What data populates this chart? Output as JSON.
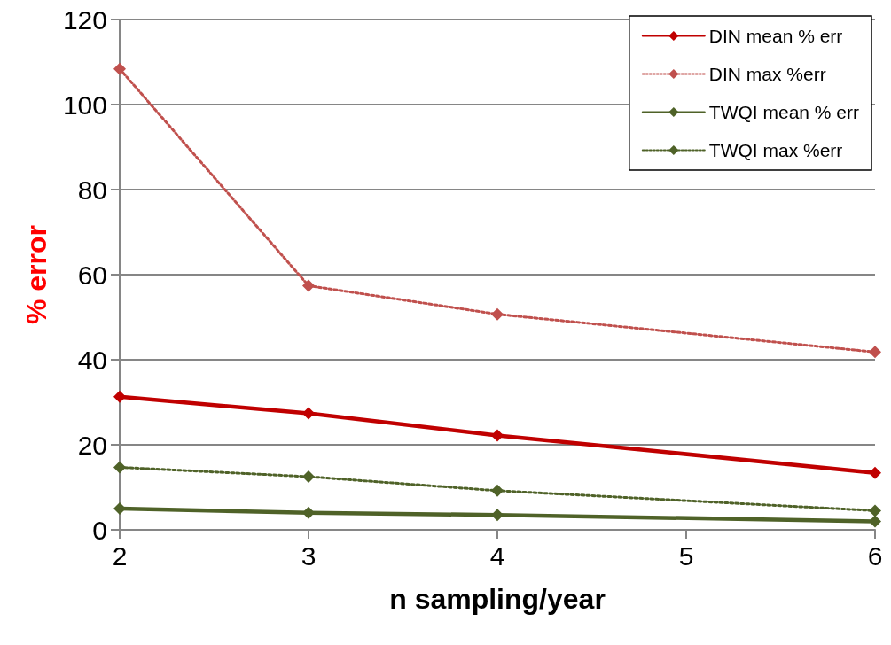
{
  "chart_data": {
    "type": "line",
    "xlabel": "n sampling/year",
    "ylabel": "% error",
    "x": [
      2,
      3,
      4,
      6
    ],
    "xlim": [
      2,
      6
    ],
    "xticks": [
      2,
      3,
      4,
      5,
      6
    ],
    "ylim": [
      0,
      120
    ],
    "yticks": [
      0,
      20,
      40,
      60,
      80,
      100,
      120
    ],
    "grid": "y",
    "legend": "top right",
    "marker": "diamond",
    "series": [
      {
        "name": "DIN mean % err",
        "color": "#c00000",
        "line_style": "solid",
        "values": [
          31.3,
          27.4,
          22.2,
          13.4
        ]
      },
      {
        "name": "DIN max %err",
        "color": "#c0504d",
        "line_style": "dotted",
        "values": [
          108.4,
          57.4,
          50.7,
          41.8
        ]
      },
      {
        "name": "TWQI mean % err",
        "color": "#4f6228",
        "line_style": "solid",
        "values": [
          5.0,
          4.0,
          3.5,
          2.0
        ]
      },
      {
        "name": "TWQI max %err",
        "color": "#4f6228",
        "line_style": "dotted",
        "values": [
          14.7,
          12.5,
          9.2,
          4.5
        ]
      }
    ]
  }
}
